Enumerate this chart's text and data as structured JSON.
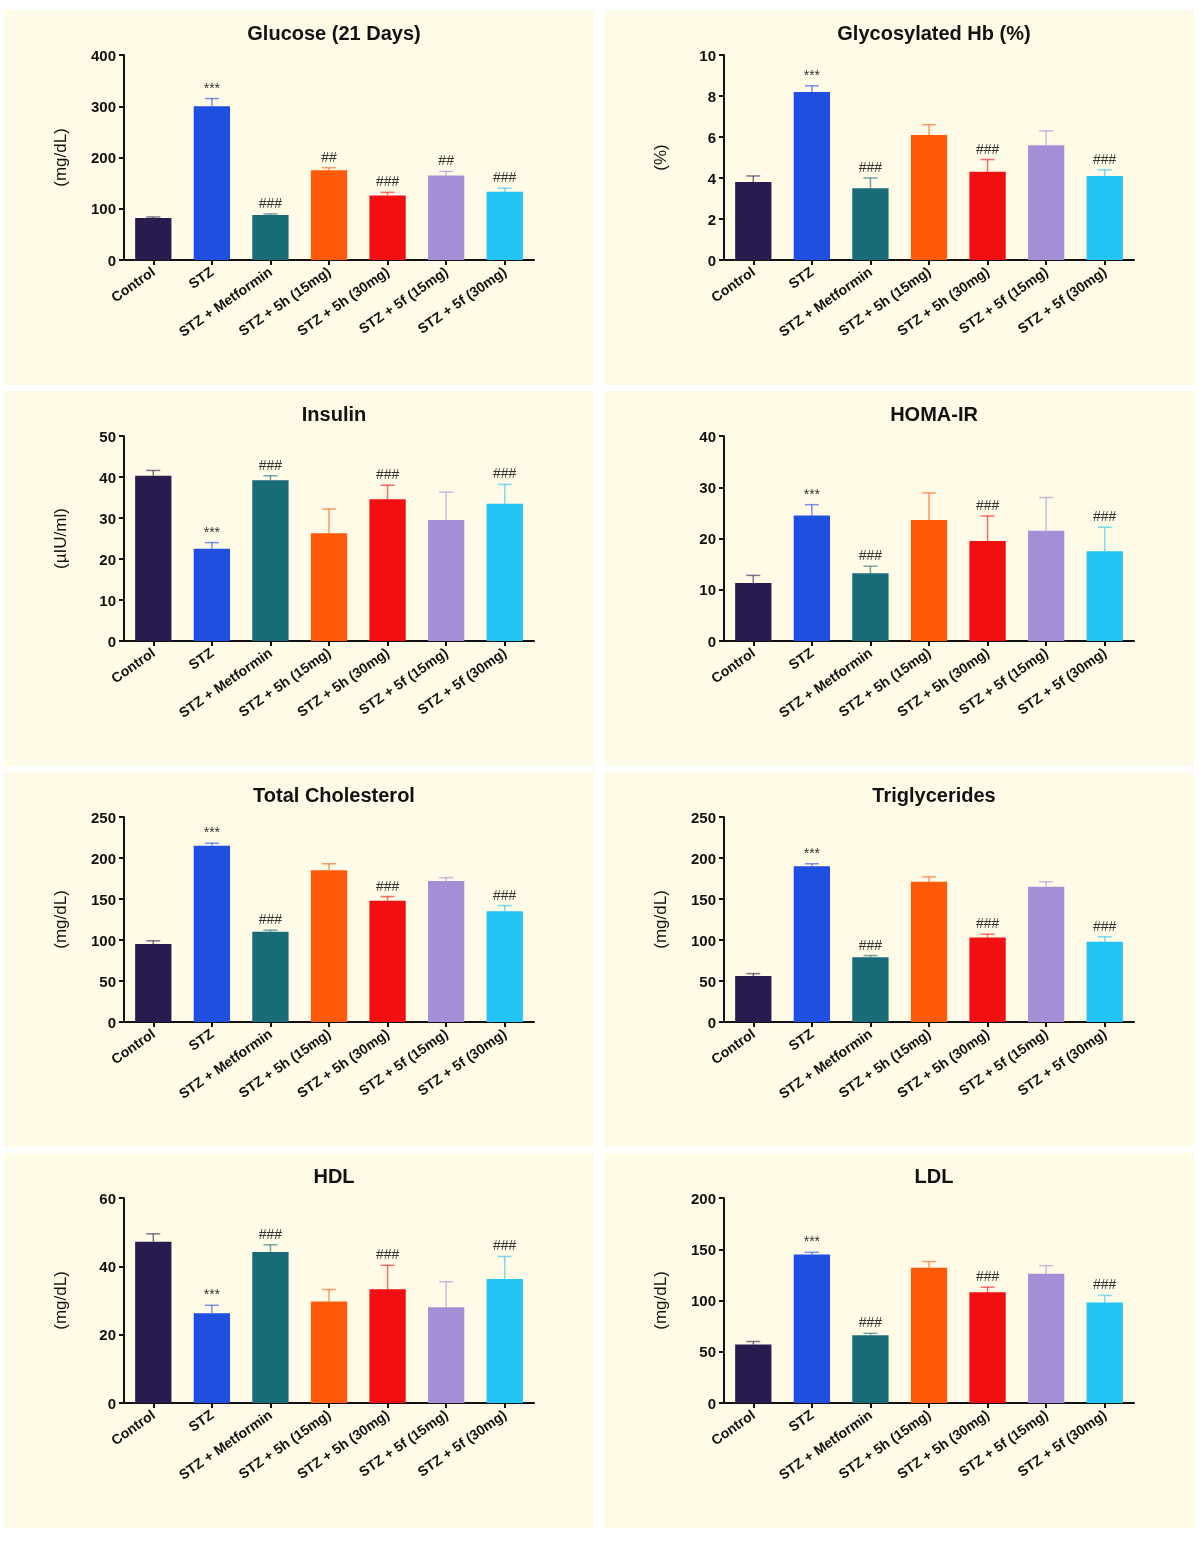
{
  "chart_data": [
    {
      "type": "bar",
      "title": "Glucose (21 Days)",
      "ylabel": "(mg/dL)",
      "categories": [
        "Control",
        "STZ",
        "STZ + Metformin",
        "STZ + 5h (15mg)",
        "STZ + 5h (30mg)",
        "STZ + 5f (15mg)",
        "STZ + 5f (30mg)"
      ],
      "colors": [
        "#2a1b4e",
        "#1f4fe0",
        "#1a6b78",
        "#ff5a0a",
        "#f20f12",
        "#a48fd6",
        "#22c4f5"
      ],
      "values": [
        82,
        300,
        88,
        175,
        126,
        165,
        133
      ],
      "errors": [
        [
          82,
          84
        ],
        [
          300,
          315
        ],
        [
          88,
          90
        ],
        [
          175,
          180
        ],
        [
          126,
          132
        ],
        [
          165,
          173
        ],
        [
          133,
          140
        ]
      ],
      "ylim": [
        0,
        400
      ],
      "yticks": [
        0,
        100,
        200,
        300,
        400
      ],
      "grid": false,
      "annotations": [
        {
          "text": "***",
          "x": "STZ",
          "y": 315
        },
        {
          "text": "###",
          "x": "STZ + Metformin",
          "y": 90
        },
        {
          "text": "##",
          "x": "STZ + 5h (15mg)",
          "y": 180
        },
        {
          "text": "###",
          "x": "STZ + 5h (30mg)",
          "y": 132
        },
        {
          "text": "##",
          "x": "STZ + 5f (15mg)",
          "y": 173
        },
        {
          "text": "###",
          "x": "STZ + 5f (30mg)",
          "y": 140
        }
      ]
    },
    {
      "type": "bar",
      "title": "Glycosylated Hb (%)",
      "ylabel": "(%)",
      "categories": [
        "Control",
        "STZ",
        "STZ + Metformin",
        "STZ + 5h (15mg)",
        "STZ + 5h (30mg)",
        "STZ + 5f (15mg)",
        "STZ + 5f (30mg)"
      ],
      "colors": [
        "#2a1b4e",
        "#1f4fe0",
        "#1a6b78",
        "#ff5a0a",
        "#f20f12",
        "#a48fd6",
        "#22c4f5"
      ],
      "values": [
        3.8,
        8.2,
        3.5,
        6.1,
        4.3,
        5.6,
        4.1
      ],
      "errors": [
        [
          3.8,
          4.1
        ],
        [
          8.2,
          8.5
        ],
        [
          3.5,
          4.0
        ],
        [
          6.1,
          6.6
        ],
        [
          4.3,
          4.9
        ],
        [
          5.6,
          6.3
        ],
        [
          4.1,
          4.4
        ]
      ],
      "ylim": [
        0,
        10
      ],
      "yticks": [
        0,
        2,
        4,
        6,
        8,
        10
      ],
      "grid": false,
      "annotations": [
        {
          "text": "***",
          "x": "STZ",
          "y": 8.5
        },
        {
          "text": "###",
          "x": "STZ + Metformin",
          "y": 4.0
        },
        {
          "text": "###",
          "x": "STZ + 5h (30mg)",
          "y": 4.9
        },
        {
          "text": "###",
          "x": "STZ + 5f (30mg)",
          "y": 4.4
        }
      ]
    },
    {
      "type": "bar",
      "title": "Insulin",
      "ylabel": "(µIU/ml)",
      "categories": [
        "Control",
        "STZ",
        "STZ + Metformin",
        "STZ + 5h (15mg)",
        "STZ + 5h (30mg)",
        "STZ + 5f (15mg)",
        "STZ + 5f (30mg)"
      ],
      "colors": [
        "#2a1b4e",
        "#1f4fe0",
        "#1a6b78",
        "#ff5a0a",
        "#f20f12",
        "#a48fd6",
        "#22c4f5"
      ],
      "values": [
        40.3,
        22.5,
        39.2,
        26.3,
        34.6,
        29.5,
        33.5
      ],
      "errors": [
        [
          40.3,
          41.6
        ],
        [
          22.5,
          24
        ],
        [
          39.2,
          40.3
        ],
        [
          26.3,
          32.2
        ],
        [
          34.6,
          38
        ],
        [
          29.5,
          36.3
        ],
        [
          33.5,
          38.2
        ]
      ],
      "ylim": [
        0,
        50
      ],
      "yticks": [
        0,
        10,
        20,
        30,
        40,
        50
      ],
      "grid": false,
      "annotations": [
        {
          "text": "***",
          "x": "STZ",
          "y": 24
        },
        {
          "text": "###",
          "x": "STZ + Metformin",
          "y": 40.3
        },
        {
          "text": "###",
          "x": "STZ + 5h (30mg)",
          "y": 38
        },
        {
          "text": "###",
          "x": "STZ + 5f (30mg)",
          "y": 38.2
        }
      ]
    },
    {
      "type": "bar",
      "title": "HOMA-IR",
      "categories": [
        "Control",
        "STZ",
        "STZ + Metformin",
        "STZ + 5h (15mg)",
        "STZ + 5h (30mg)",
        "STZ + 5f (15mg)",
        "STZ + 5f (30mg)"
      ],
      "colors": [
        "#2a1b4e",
        "#1f4fe0",
        "#1a6b78",
        "#ff5a0a",
        "#f20f12",
        "#a48fd6",
        "#22c4f5"
      ],
      "values": [
        11.3,
        24.5,
        13.2,
        23.6,
        19.5,
        21.5,
        17.5
      ],
      "errors": [
        [
          11.3,
          12.8
        ],
        [
          24.5,
          26.6
        ],
        [
          13.2,
          14.6
        ],
        [
          23.6,
          28.9
        ],
        [
          19.5,
          24.4
        ],
        [
          21.5,
          28
        ],
        [
          17.5,
          22.2
        ]
      ],
      "ylim": [
        0,
        40
      ],
      "yticks": [
        0,
        10,
        20,
        30,
        40
      ],
      "grid": false,
      "annotations": [
        {
          "text": "***",
          "x": "STZ",
          "y": 26.6
        },
        {
          "text": "###",
          "x": "STZ + Metformin",
          "y": 14.6
        },
        {
          "text": "###",
          "x": "STZ + 5h (30mg)",
          "y": 24.4
        },
        {
          "text": "###",
          "x": "STZ + 5f (30mg)",
          "y": 22.2
        }
      ]
    },
    {
      "type": "bar",
      "title": "Total Cholesterol",
      "ylabel": "(mg/dL)",
      "categories": [
        "Control",
        "STZ",
        "STZ + Metformin",
        "STZ + 5h (15mg)",
        "STZ + 5h (30mg)",
        "STZ + 5f (15mg)",
        "STZ + 5f (30mg)"
      ],
      "colors": [
        "#2a1b4e",
        "#1f4fe0",
        "#1a6b78",
        "#ff5a0a",
        "#f20f12",
        "#a48fd6",
        "#22c4f5"
      ],
      "values": [
        95,
        215,
        110,
        185,
        148,
        172,
        135
      ],
      "errors": [
        [
          95,
          99
        ],
        [
          215,
          218
        ],
        [
          110,
          112
        ],
        [
          185,
          193
        ],
        [
          148,
          153
        ],
        [
          172,
          176
        ],
        [
          135,
          142
        ]
      ],
      "ylim": [
        0,
        250
      ],
      "yticks": [
        0,
        50,
        100,
        150,
        200,
        250
      ],
      "grid": false,
      "annotations": [
        {
          "text": "***",
          "x": "STZ",
          "y": 218
        },
        {
          "text": "###",
          "x": "STZ + Metformin",
          "y": 112
        },
        {
          "text": "###",
          "x": "STZ + 5h (30mg)",
          "y": 153
        },
        {
          "text": "###",
          "x": "STZ + 5f (30mg)",
          "y": 142
        }
      ]
    },
    {
      "type": "bar",
      "title": "Triglycerides",
      "ylabel": "(mg/dL)",
      "categories": [
        "Control",
        "STZ",
        "STZ + Metformin",
        "STZ + 5h (15mg)",
        "STZ + 5h (30mg)",
        "STZ + 5f (15mg)",
        "STZ + 5f (30mg)"
      ],
      "colors": [
        "#2a1b4e",
        "#1f4fe0",
        "#1a6b78",
        "#ff5a0a",
        "#f20f12",
        "#a48fd6",
        "#22c4f5"
      ],
      "values": [
        56,
        190,
        79,
        171,
        103,
        165,
        98
      ],
      "errors": [
        [
          56,
          59
        ],
        [
          190,
          193
        ],
        [
          79,
          81
        ],
        [
          171,
          177
        ],
        [
          103,
          107
        ],
        [
          165,
          171
        ],
        [
          98,
          104
        ]
      ],
      "ylim": [
        0,
        250
      ],
      "yticks": [
        0,
        50,
        100,
        150,
        200,
        250
      ],
      "grid": false,
      "annotations": [
        {
          "text": "***",
          "x": "STZ",
          "y": 193
        },
        {
          "text": "###",
          "x": "STZ + Metformin",
          "y": 81
        },
        {
          "text": "###",
          "x": "STZ + 5h (30mg)",
          "y": 107
        },
        {
          "text": "###",
          "x": "STZ + 5f (30mg)",
          "y": 104
        }
      ]
    },
    {
      "type": "bar",
      "title": "HDL",
      "ylabel": "(mg/dL)",
      "categories": [
        "Control",
        "STZ",
        "STZ + Metformin",
        "STZ + 5h (15mg)",
        "STZ + 5h (30mg)",
        "STZ + 5f (15mg)",
        "STZ + 5f (30mg)"
      ],
      "colors": [
        "#2a1b4e",
        "#1f4fe0",
        "#1a6b78",
        "#ff5a0a",
        "#f20f12",
        "#a48fd6",
        "#22c4f5"
      ],
      "values": [
        47.2,
        26.3,
        44.2,
        29.7,
        33.3,
        28,
        36.3
      ],
      "errors": [
        [
          47.2,
          49.5
        ],
        [
          26.3,
          28.6
        ],
        [
          44.2,
          46.3
        ],
        [
          29.7,
          33.2
        ],
        [
          33.3,
          40.3
        ],
        [
          28,
          35.5
        ],
        [
          36.3,
          42.9
        ]
      ],
      "ylim": [
        0,
        60
      ],
      "yticks": [
        0,
        20,
        40,
        60
      ],
      "grid": false,
      "annotations": [
        {
          "text": "***",
          "x": "STZ",
          "y": 28.6
        },
        {
          "text": "###",
          "x": "STZ + Metformin",
          "y": 46.3
        },
        {
          "text": "###",
          "x": "STZ + 5h (30mg)",
          "y": 40.3
        },
        {
          "text": "###",
          "x": "STZ + 5f (30mg)",
          "y": 42.9
        }
      ]
    },
    {
      "type": "bar",
      "title": "LDL",
      "ylabel": "(mg/dL)",
      "categories": [
        "Control",
        "STZ",
        "STZ + Metformin",
        "STZ + 5h (15mg)",
        "STZ + 5h (30mg)",
        "STZ + 5f (15mg)",
        "STZ + 5f (30mg)"
      ],
      "colors": [
        "#2a1b4e",
        "#1f4fe0",
        "#1a6b78",
        "#ff5a0a",
        "#f20f12",
        "#a48fd6",
        "#22c4f5"
      ],
      "values": [
        57,
        145,
        66,
        132,
        108,
        126,
        98
      ],
      "errors": [
        [
          57,
          60
        ],
        [
          145,
          147
        ],
        [
          66,
          68
        ],
        [
          132,
          138
        ],
        [
          108,
          113
        ],
        [
          126,
          134
        ],
        [
          98,
          105
        ]
      ],
      "ylim": [
        0,
        200
      ],
      "yticks": [
        0,
        50,
        100,
        150,
        200
      ],
      "grid": false,
      "annotations": [
        {
          "text": "***",
          "x": "STZ",
          "y": 147
        },
        {
          "text": "###",
          "x": "STZ + Metformin",
          "y": 68
        },
        {
          "text": "###",
          "x": "STZ + 5h (30mg)",
          "y": 113
        },
        {
          "text": "###",
          "x": "STZ + 5f (30mg)",
          "y": 105
        }
      ]
    }
  ]
}
